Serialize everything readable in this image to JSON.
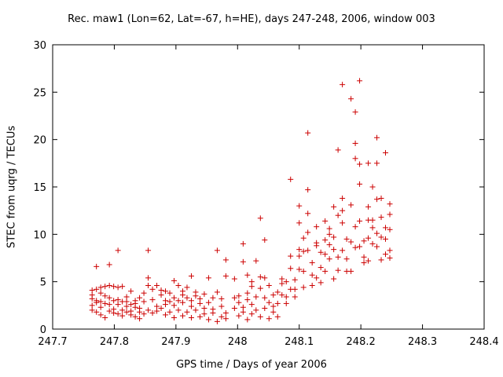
{
  "chart_data": {
    "type": "scatter",
    "title": "Rec. maw1 (Lon=62, Lat=-67, h=HE), days 247-248, 2006, window 003",
    "xlabel": "GPS time / Days of year 2006",
    "ylabel": "STEC from uqrg / TECUs",
    "xlim": [
      247.7,
      248.4
    ],
    "ylim": [
      0,
      30
    ],
    "xticks": [
      "247.7",
      "247.8",
      "247.9",
      "248",
      "248.1",
      "248.2",
      "248.3",
      "248.4"
    ],
    "yticks": [
      "0",
      "5",
      "10",
      "15",
      "20",
      "25",
      "30"
    ],
    "grid": false,
    "marker": "+",
    "color": "#cc0000",
    "series": [
      {
        "points": [
          [
            247.764,
            2.0
          ],
          [
            247.764,
            2.5
          ],
          [
            247.764,
            3.2
          ],
          [
            247.764,
            3.6
          ],
          [
            247.764,
            4.1
          ],
          [
            247.771,
            6.6
          ],
          [
            247.771,
            2.8
          ],
          [
            247.771,
            1.8
          ],
          [
            247.771,
            4.2
          ],
          [
            247.771,
            3.0
          ],
          [
            247.778,
            2.3
          ],
          [
            247.778,
            3.8
          ],
          [
            247.778,
            4.4
          ],
          [
            247.778,
            1.5
          ],
          [
            247.778,
            2.9
          ],
          [
            247.785,
            3.5
          ],
          [
            247.785,
            1.2
          ],
          [
            247.785,
            2.7
          ],
          [
            247.785,
            4.5
          ],
          [
            247.792,
            1.9
          ],
          [
            247.792,
            2.6
          ],
          [
            247.792,
            3.3
          ],
          [
            247.792,
            4.6
          ],
          [
            247.792,
            6.8
          ],
          [
            247.799,
            2.1
          ],
          [
            247.799,
            3.0
          ],
          [
            247.799,
            1.7
          ],
          [
            247.799,
            4.5
          ],
          [
            247.806,
            2.6
          ],
          [
            247.806,
            3.1
          ],
          [
            247.806,
            1.6
          ],
          [
            247.806,
            8.3
          ],
          [
            247.806,
            4.4
          ],
          [
            247.813,
            2.0
          ],
          [
            247.813,
            2.9
          ],
          [
            247.813,
            1.4
          ],
          [
            247.813,
            4.5
          ],
          [
            247.82,
            2.4
          ],
          [
            247.82,
            1.8
          ],
          [
            247.82,
            3.4
          ],
          [
            247.82,
            2.9
          ],
          [
            247.827,
            1.5
          ],
          [
            247.827,
            2.6
          ],
          [
            247.827,
            1.9
          ],
          [
            247.827,
            4.0
          ],
          [
            247.834,
            2.7
          ],
          [
            247.834,
            1.3
          ],
          [
            247.834,
            2.3
          ],
          [
            247.834,
            3.0
          ],
          [
            247.841,
            1.8
          ],
          [
            247.841,
            3.3
          ],
          [
            247.841,
            1.1
          ],
          [
            247.841,
            2.2
          ],
          [
            247.848,
            2.9
          ],
          [
            247.848,
            1.6
          ],
          [
            247.848,
            3.8
          ],
          [
            247.855,
            2.0
          ],
          [
            247.855,
            8.3
          ],
          [
            247.855,
            4.6
          ],
          [
            247.855,
            5.4
          ],
          [
            247.862,
            1.7
          ],
          [
            247.862,
            3.1
          ],
          [
            247.862,
            4.2
          ],
          [
            247.869,
            2.4
          ],
          [
            247.869,
            4.6
          ],
          [
            247.869,
            1.9
          ],
          [
            247.876,
            3.6
          ],
          [
            247.876,
            2.2
          ],
          [
            247.876,
            4.1
          ],
          [
            247.883,
            1.5
          ],
          [
            247.883,
            3.0
          ],
          [
            247.883,
            2.6
          ],
          [
            247.883,
            4.0
          ],
          [
            247.89,
            1.8
          ],
          [
            247.89,
            3.8
          ],
          [
            247.89,
            2.9
          ],
          [
            247.897,
            1.2
          ],
          [
            247.897,
            2.5
          ],
          [
            247.897,
            5.1
          ],
          [
            247.897,
            3.3
          ],
          [
            247.904,
            4.6
          ],
          [
            247.904,
            2.0
          ],
          [
            247.904,
            3.0
          ],
          [
            247.911,
            1.4
          ],
          [
            247.911,
            2.8
          ],
          [
            247.911,
            4.0
          ],
          [
            247.911,
            3.6
          ],
          [
            247.918,
            1.8
          ],
          [
            247.918,
            3.3
          ],
          [
            247.918,
            4.4
          ],
          [
            247.925,
            2.4
          ],
          [
            247.925,
            5.6
          ],
          [
            247.925,
            3.0
          ],
          [
            247.925,
            1.2
          ],
          [
            247.932,
            2.0
          ],
          [
            247.932,
            3.9
          ],
          [
            247.932,
            3.5
          ],
          [
            247.939,
            1.3
          ],
          [
            247.939,
            2.7
          ],
          [
            247.939,
            3.2
          ],
          [
            247.946,
            2.2
          ],
          [
            247.946,
            3.7
          ],
          [
            247.946,
            1.6
          ],
          [
            247.953,
            5.4
          ],
          [
            247.953,
            2.8
          ],
          [
            247.953,
            1.0
          ],
          [
            247.96,
            1.7
          ],
          [
            247.96,
            3.3
          ],
          [
            247.96,
            2.1
          ],
          [
            247.967,
            8.3
          ],
          [
            247.967,
            3.9
          ],
          [
            247.967,
            0.8
          ],
          [
            247.974,
            2.4
          ],
          [
            247.974,
            1.3
          ],
          [
            247.974,
            3.2
          ],
          [
            247.981,
            7.3
          ],
          [
            247.981,
            5.6
          ],
          [
            247.981,
            1.7
          ],
          [
            247.981,
            1.1
          ],
          [
            247.995,
            2.2
          ],
          [
            247.995,
            3.3
          ],
          [
            247.995,
            5.3
          ],
          [
            248.002,
            1.4
          ],
          [
            248.002,
            2.8
          ],
          [
            248.002,
            3.5
          ],
          [
            248.009,
            9.0
          ],
          [
            248.009,
            7.1
          ],
          [
            248.009,
            2.3
          ],
          [
            248.009,
            1.8
          ],
          [
            248.016,
            3.1
          ],
          [
            248.016,
            3.8
          ],
          [
            248.016,
            5.7
          ],
          [
            248.016,
            1.0
          ],
          [
            248.023,
            2.6
          ],
          [
            248.023,
            4.5
          ],
          [
            248.023,
            1.6
          ],
          [
            248.023,
            5.0
          ],
          [
            248.03,
            7.2
          ],
          [
            248.03,
            3.4
          ],
          [
            248.03,
            2.0
          ],
          [
            248.037,
            11.7
          ],
          [
            248.037,
            5.5
          ],
          [
            248.037,
            4.3
          ],
          [
            248.037,
            1.3
          ],
          [
            248.044,
            9.4
          ],
          [
            248.044,
            3.3
          ],
          [
            248.044,
            2.2
          ],
          [
            248.044,
            5.4
          ],
          [
            248.051,
            1.1
          ],
          [
            248.051,
            2.8
          ],
          [
            248.051,
            4.6
          ],
          [
            248.058,
            3.6
          ],
          [
            248.058,
            1.8
          ],
          [
            248.058,
            2.4
          ],
          [
            248.065,
            1.3
          ],
          [
            248.065,
            3.9
          ],
          [
            248.065,
            2.7
          ],
          [
            248.072,
            3.6
          ],
          [
            248.072,
            5.3
          ],
          [
            248.072,
            4.8
          ],
          [
            248.079,
            2.7
          ],
          [
            248.079,
            3.4
          ],
          [
            248.079,
            5.0
          ],
          [
            248.086,
            15.8
          ],
          [
            248.086,
            7.7
          ],
          [
            248.086,
            6.4
          ],
          [
            248.086,
            4.2
          ],
          [
            248.093,
            5.2
          ],
          [
            248.093,
            4.2
          ],
          [
            248.093,
            3.4
          ],
          [
            248.1,
            13.0
          ],
          [
            248.1,
            11.2
          ],
          [
            248.1,
            8.4
          ],
          [
            248.1,
            7.7
          ],
          [
            248.1,
            6.3
          ],
          [
            248.107,
            9.6
          ],
          [
            248.107,
            8.2
          ],
          [
            248.107,
            6.1
          ],
          [
            248.107,
            4.4
          ],
          [
            248.114,
            20.7
          ],
          [
            248.114,
            14.7
          ],
          [
            248.114,
            12.2
          ],
          [
            248.114,
            10.2
          ],
          [
            248.114,
            8.3
          ],
          [
            248.121,
            7.0
          ],
          [
            248.121,
            5.7
          ],
          [
            248.121,
            4.6
          ],
          [
            248.128,
            10.8
          ],
          [
            248.128,
            9.1
          ],
          [
            248.128,
            8.8
          ],
          [
            248.128,
            5.4
          ],
          [
            248.135,
            8.1
          ],
          [
            248.135,
            6.5
          ],
          [
            248.135,
            4.9
          ],
          [
            248.142,
            11.4
          ],
          [
            248.142,
            9.4
          ],
          [
            248.142,
            7.9
          ],
          [
            248.142,
            6.1
          ],
          [
            248.149,
            10.6
          ],
          [
            248.149,
            10.0
          ],
          [
            248.149,
            8.9
          ],
          [
            248.149,
            7.4
          ],
          [
            248.156,
            12.9
          ],
          [
            248.156,
            9.7
          ],
          [
            248.156,
            8.4
          ],
          [
            248.156,
            5.3
          ],
          [
            248.163,
            18.9
          ],
          [
            248.163,
            12.0
          ],
          [
            248.163,
            7.6
          ],
          [
            248.163,
            6.2
          ],
          [
            248.17,
            25.8
          ],
          [
            248.17,
            13.8
          ],
          [
            248.17,
            12.5
          ],
          [
            248.17,
            11.2
          ],
          [
            248.17,
            8.3
          ],
          [
            248.177,
            9.5
          ],
          [
            248.177,
            7.4
          ],
          [
            248.177,
            6.1
          ],
          [
            248.184,
            24.3
          ],
          [
            248.184,
            13.1
          ],
          [
            248.184,
            9.2
          ],
          [
            248.184,
            6.1
          ],
          [
            248.191,
            22.9
          ],
          [
            248.191,
            19.6
          ],
          [
            248.191,
            18.0
          ],
          [
            248.191,
            10.8
          ],
          [
            248.191,
            8.6
          ],
          [
            248.198,
            26.2
          ],
          [
            248.198,
            17.4
          ],
          [
            248.198,
            15.3
          ],
          [
            248.198,
            11.4
          ],
          [
            248.198,
            8.7
          ],
          [
            248.205,
            9.3
          ],
          [
            248.205,
            7.6
          ],
          [
            248.205,
            7.0
          ],
          [
            248.212,
            17.5
          ],
          [
            248.212,
            12.9
          ],
          [
            248.212,
            11.5
          ],
          [
            248.212,
            9.6
          ],
          [
            248.212,
            7.2
          ],
          [
            248.219,
            15.0
          ],
          [
            248.219,
            11.5
          ],
          [
            248.219,
            10.7
          ],
          [
            248.219,
            9.0
          ],
          [
            248.226,
            20.2
          ],
          [
            248.226,
            17.5
          ],
          [
            248.226,
            13.7
          ],
          [
            248.226,
            10.1
          ],
          [
            248.226,
            8.7
          ],
          [
            248.233,
            13.8
          ],
          [
            248.233,
            11.8
          ],
          [
            248.233,
            9.7
          ],
          [
            248.233,
            7.3
          ],
          [
            248.24,
            18.6
          ],
          [
            248.24,
            10.7
          ],
          [
            248.24,
            9.5
          ],
          [
            248.24,
            7.9
          ],
          [
            248.247,
            13.2
          ],
          [
            248.247,
            12.1
          ],
          [
            248.247,
            10.5
          ],
          [
            248.247,
            8.3
          ],
          [
            248.247,
            7.5
          ]
        ]
      }
    ]
  }
}
